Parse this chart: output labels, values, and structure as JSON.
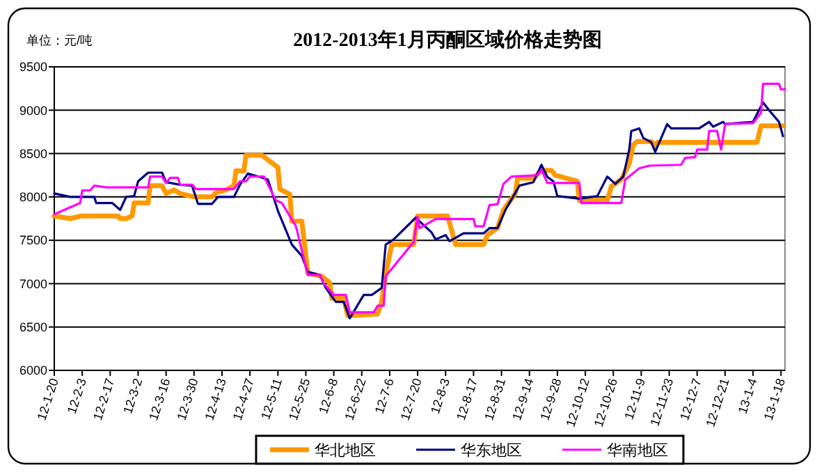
{
  "chart_data": {
    "type": "line",
    "title": "2012-2013年1月丙酮区域价格走势图",
    "ylabel": "单位：元/吨",
    "xlim": [
      "2012-01-20",
      "2013-01-20"
    ],
    "xticks": [
      {
        "value": "2012-01-20",
        "label": "12-1-20"
      },
      {
        "value": "2012-02-03",
        "label": "12-2-3"
      },
      {
        "value": "2012-02-17",
        "label": "12-2-17"
      },
      {
        "value": "2012-03-02",
        "label": "12-3-2"
      },
      {
        "value": "2012-03-16",
        "label": "12-3-16"
      },
      {
        "value": "2012-03-30",
        "label": "12-3-30"
      },
      {
        "value": "2012-04-13",
        "label": "12-4-13"
      },
      {
        "value": "2012-04-27",
        "label": "12-4-27"
      },
      {
        "value": "2012-05-11",
        "label": "12-5-11"
      },
      {
        "value": "2012-05-25",
        "label": "12-5-25"
      },
      {
        "value": "2012-06-08",
        "label": "12-6-8"
      },
      {
        "value": "2012-06-22",
        "label": "12-6-22"
      },
      {
        "value": "2012-07-06",
        "label": "12-7-6"
      },
      {
        "value": "2012-07-20",
        "label": "12-7-20"
      },
      {
        "value": "2012-08-03",
        "label": "12-8-3"
      },
      {
        "value": "2012-08-17",
        "label": "12-8-17"
      },
      {
        "value": "2012-08-31",
        "label": "12-8-31"
      },
      {
        "value": "2012-09-14",
        "label": "12-9-14"
      },
      {
        "value": "2012-09-28",
        "label": "12-9-28"
      },
      {
        "value": "2012-10-12",
        "label": "12-10-12"
      },
      {
        "value": "2012-10-26",
        "label": "12-10-26"
      },
      {
        "value": "2012-11-09",
        "label": "12-11-9"
      },
      {
        "value": "2012-11-23",
        "label": "12-11-23"
      },
      {
        "value": "2012-12-07",
        "label": "12-12-7"
      },
      {
        "value": "2012-12-21",
        "label": "12-12-21"
      },
      {
        "value": "2013-01-04",
        "label": "13-1-4"
      },
      {
        "value": "2013-01-18",
        "label": "13-1-18"
      }
    ],
    "ylim": [
      6000,
      9500
    ],
    "yticks": [
      6000,
      6500,
      7000,
      7500,
      8000,
      8500,
      9000,
      9500
    ],
    "grid": "y",
    "legend": "bottom",
    "marker": "none",
    "line_style": "solid",
    "series": [
      {
        "name": "华北地区",
        "color": "#ff9900",
        "x": [
          "2012-01-20",
          "2012-01-28",
          "2012-02-02",
          "2012-02-21",
          "2012-02-22",
          "2012-02-25",
          "2012-02-28",
          "2012-02-29",
          "2012-03-07",
          "2012-03-08",
          "2012-03-14",
          "2012-03-16",
          "2012-03-20",
          "2012-03-23",
          "2012-03-30",
          "2012-04-08",
          "2012-04-10",
          "2012-04-15",
          "2012-04-19",
          "2012-04-20",
          "2012-04-24",
          "2012-04-25",
          "2012-05-03",
          "2012-05-11",
          "2012-05-12",
          "2012-05-17",
          "2012-05-18",
          "2012-05-23",
          "2012-05-26",
          "2012-06-02",
          "2012-06-06",
          "2012-06-07",
          "2012-06-13",
          "2012-06-15",
          "2012-06-30",
          "2012-07-02",
          "2012-07-04",
          "2012-07-07",
          "2012-07-18",
          "2012-07-20",
          "2012-08-04",
          "2012-08-08",
          "2012-08-22",
          "2012-08-24",
          "2012-08-29",
          "2012-09-01",
          "2012-09-07",
          "2012-09-08",
          "2012-09-16",
          "2012-09-20",
          "2012-09-25",
          "2012-09-27",
          "2012-10-08",
          "2012-10-09",
          "2012-10-23",
          "2012-10-25",
          "2012-10-30",
          "2012-11-03",
          "2012-11-05",
          "2012-11-07",
          "2012-11-14",
          "2012-11-16",
          "2012-11-17",
          "2013-01-06",
          "2013-01-08",
          "2013-01-19"
        ],
        "values": [
          7780,
          7750,
          7780,
          7780,
          7750,
          7750,
          7780,
          7930,
          7930,
          8130,
          8130,
          8040,
          8080,
          8040,
          8000,
          8000,
          8050,
          8080,
          8130,
          8300,
          8300,
          8480,
          8480,
          8340,
          8090,
          8030,
          7720,
          7720,
          7120,
          7085,
          7010,
          6830,
          6830,
          6630,
          6650,
          6790,
          7110,
          7450,
          7450,
          7780,
          7780,
          7450,
          7450,
          7560,
          7640,
          7850,
          8040,
          8215,
          8215,
          8305,
          8305,
          8250,
          8180,
          7960,
          7960,
          8120,
          8200,
          8385,
          8600,
          8640,
          8640,
          8590,
          8630,
          8630,
          8820,
          8820
        ]
      },
      {
        "name": "华东地区",
        "color": "#000080",
        "x": [
          "2012-01-20",
          "2012-01-28",
          "2012-02-09",
          "2012-02-10",
          "2012-02-18",
          "2012-02-22",
          "2012-02-25",
          "2012-02-29",
          "2012-03-02",
          "2012-03-07",
          "2012-03-14",
          "2012-03-16",
          "2012-03-23",
          "2012-03-29",
          "2012-04-01",
          "2012-04-08",
          "2012-04-11",
          "2012-04-19",
          "2012-04-22",
          "2012-04-26",
          "2012-05-02",
          "2012-05-06",
          "2012-05-11",
          "2012-05-18",
          "2012-05-23",
          "2012-05-26",
          "2012-06-01",
          "2012-06-04",
          "2012-06-09",
          "2012-06-13",
          "2012-06-16",
          "2012-06-23",
          "2012-06-27",
          "2012-07-02",
          "2012-07-04",
          "2012-07-08",
          "2012-07-19",
          "2012-07-27",
          "2012-07-29",
          "2012-08-03",
          "2012-08-05",
          "2012-08-12",
          "2012-08-22",
          "2012-08-25",
          "2012-08-29",
          "2012-09-02",
          "2012-09-09",
          "2012-09-16",
          "2012-09-20",
          "2012-09-23",
          "2012-09-26",
          "2012-09-28",
          "2012-10-09",
          "2012-10-18",
          "2012-10-23",
          "2012-10-27",
          "2012-10-31",
          "2012-11-03",
          "2012-11-04",
          "2012-11-08",
          "2012-11-10",
          "2012-11-14",
          "2012-11-16",
          "2012-11-22",
          "2012-11-24",
          "2012-12-08",
          "2012-12-13",
          "2012-12-15",
          "2012-12-20",
          "2012-12-21",
          "2013-01-04",
          "2013-01-09",
          "2013-01-12",
          "2013-01-17",
          "2013-01-19"
        ],
        "values": [
          8040,
          8000,
          8000,
          7930,
          7930,
          7850,
          8000,
          8010,
          8180,
          8280,
          8280,
          8170,
          8140,
          8130,
          7920,
          7920,
          8000,
          8000,
          8140,
          8270,
          8230,
          8200,
          7840,
          7450,
          7320,
          7135,
          7100,
          6950,
          6790,
          6790,
          6600,
          6870,
          6870,
          6950,
          7450,
          7510,
          7760,
          7590,
          7510,
          7560,
          7490,
          7580,
          7580,
          7640,
          7640,
          7850,
          8130,
          8170,
          8370,
          8230,
          8180,
          8010,
          7980,
          8010,
          8235,
          8150,
          8235,
          8545,
          8760,
          8790,
          8680,
          8630,
          8520,
          8840,
          8790,
          8790,
          8865,
          8810,
          8865,
          8840,
          8865,
          9090,
          9000,
          8865,
          8700
        ]
      },
      {
        "name": "华南地区",
        "color": "#ff00ff",
        "x": [
          "2012-01-20",
          "2012-02-02",
          "2012-02-03",
          "2012-02-07",
          "2012-02-09",
          "2012-02-15",
          "2012-03-07",
          "2012-03-08",
          "2012-03-14",
          "2012-03-16",
          "2012-03-18",
          "2012-03-22",
          "2012-03-23",
          "2012-03-29",
          "2012-03-31",
          "2012-04-19",
          "2012-04-22",
          "2012-04-25",
          "2012-04-27",
          "2012-05-04",
          "2012-05-10",
          "2012-05-13",
          "2012-05-20",
          "2012-05-26",
          "2012-06-01",
          "2012-06-03",
          "2012-06-08",
          "2012-06-14",
          "2012-06-16",
          "2012-06-28",
          "2012-06-30",
          "2012-07-03",
          "2012-07-04",
          "2012-07-18",
          "2012-07-20",
          "2012-07-21",
          "2012-07-29",
          "2012-08-17",
          "2012-08-18",
          "2012-08-22",
          "2012-08-25",
          "2012-08-29",
          "2012-09-01",
          "2012-09-05",
          "2012-09-18",
          "2012-09-20",
          "2012-09-23",
          "2012-10-09",
          "2012-10-10",
          "2012-10-30",
          "2012-11-01",
          "2012-11-08",
          "2012-11-13",
          "2012-11-29",
          "2012-12-01",
          "2012-12-06",
          "2012-12-07",
          "2012-12-12",
          "2012-12-13",
          "2012-12-17",
          "2012-12-19",
          "2012-12-21",
          "2013-01-04",
          "2013-01-08",
          "2013-01-09",
          "2013-01-17",
          "2013-01-18",
          "2013-01-20"
        ],
        "values": [
          7800,
          7930,
          8075,
          8075,
          8130,
          8110,
          8110,
          8235,
          8235,
          8160,
          8220,
          8220,
          8140,
          8140,
          8090,
          8090,
          8180,
          8180,
          8235,
          8235,
          7960,
          7930,
          7665,
          7100,
          7100,
          7000,
          6870,
          6870,
          6670,
          6670,
          6745,
          6745,
          7085,
          7480,
          7770,
          7640,
          7745,
          7745,
          7660,
          7660,
          7905,
          7915,
          8150,
          8235,
          8250,
          8315,
          8160,
          8160,
          7930,
          7930,
          8200,
          8330,
          8360,
          8370,
          8450,
          8460,
          8545,
          8545,
          8760,
          8760,
          8545,
          8840,
          8850,
          8970,
          9305,
          9305,
          9240,
          9240
        ]
      }
    ]
  }
}
